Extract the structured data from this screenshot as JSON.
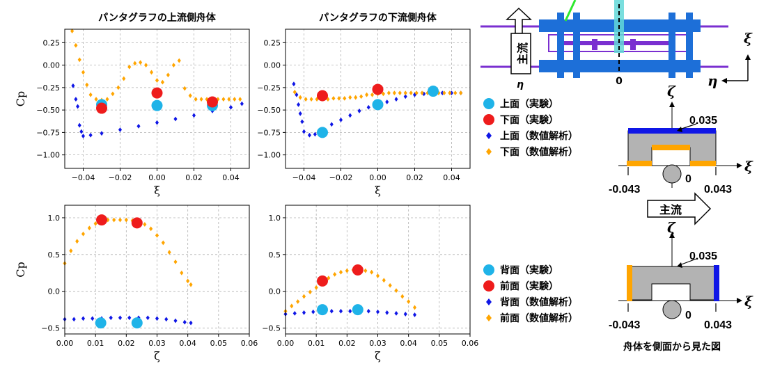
{
  "colors": {
    "upper_exp": "#1fb3e8",
    "lower_exp": "#ee1c1c",
    "upper_num": "#0f16e6",
    "lower_num": "#ffa500",
    "body_blue": "#1d6fd8",
    "rail_purple": "#7a2fd0",
    "body_gray": "#b3b3b3"
  },
  "legend_top": [
    {
      "label": "上面（実験）",
      "marker": "circle",
      "color_key": "upper_exp"
    },
    {
      "label": "下面（実験）",
      "marker": "circle",
      "color_key": "lower_exp"
    },
    {
      "label": "上面（数値解析）",
      "marker": "diamond",
      "color_key": "upper_num"
    },
    {
      "label": "下面（数値解析）",
      "marker": "diamond",
      "color_key": "lower_num"
    }
  ],
  "legend_bottom": [
    {
      "label": "背面（実験）",
      "marker": "circle",
      "color_key": "upper_exp"
    },
    {
      "label": "前面（実験）",
      "marker": "circle",
      "color_key": "lower_exp"
    },
    {
      "label": "背面（数値解析）",
      "marker": "diamond",
      "color_key": "upper_num"
    },
    {
      "label": "前面（数値解析）",
      "marker": "diamond",
      "color_key": "lower_num"
    }
  ],
  "diagram": {
    "flow_label": "主流",
    "xi_symbol": "ξ",
    "eta_symbol": "η",
    "zeta_symbol": "ζ",
    "zero_label": "0",
    "dim_top": "0.035",
    "dim_left": "-0.043",
    "dim_right": "0.043",
    "caption": "舟体を側面から見た図"
  },
  "chart_data": [
    {
      "type": "scatter",
      "title": "パンタグラフの上流側舟体",
      "xlabel": "ξ",
      "ylabel": "Cp",
      "xlim": [
        -0.05,
        0.05
      ],
      "ylim": [
        -1.15,
        0.4
      ],
      "xticks": [
        -0.04,
        -0.02,
        0.0,
        0.02,
        0.04
      ],
      "xtick_labels": [
        "−0.04",
        "−0.02",
        "0.00",
        "0.02",
        "0.04"
      ],
      "yticks": [
        0.25,
        0.0,
        -0.25,
        -0.5,
        -0.75,
        -1.0
      ],
      "ytick_labels": [
        "0.25",
        "0.00",
        "−0.25",
        "−0.50",
        "−0.75",
        "−1.00"
      ],
      "grid": true,
      "series": [
        {
          "name": "上面（数値解析）",
          "marker": "diamond",
          "color_key": "upper_num",
          "x": [
            -0.0455,
            -0.044,
            -0.043,
            -0.042,
            -0.041,
            -0.04,
            -0.036,
            -0.03,
            -0.02,
            -0.01,
            0.0,
            0.01,
            0.02,
            0.03,
            0.04,
            0.046
          ],
          "y": [
            -0.23,
            -0.38,
            -0.46,
            -0.67,
            -0.74,
            -0.79,
            -0.78,
            -0.76,
            -0.72,
            -0.68,
            -0.64,
            -0.6,
            -0.56,
            -0.51,
            -0.47,
            -0.43
          ]
        },
        {
          "name": "下面（数値解析）",
          "marker": "diamond",
          "color_key": "lower_num",
          "x": [
            -0.046,
            -0.044,
            -0.042,
            -0.04,
            -0.038,
            -0.036,
            -0.033,
            -0.03,
            -0.027,
            -0.024,
            -0.021,
            -0.018,
            -0.015,
            -0.012,
            -0.009,
            -0.006,
            -0.003,
            0.0,
            0.003,
            0.006,
            0.009,
            0.012,
            0.015,
            0.018,
            0.021,
            0.024,
            0.027,
            0.03,
            0.033,
            0.036,
            0.039,
            0.042,
            0.045
          ],
          "y": [
            0.38,
            0.22,
            0.06,
            -0.08,
            -0.22,
            -0.33,
            -0.38,
            -0.39,
            -0.38,
            -0.32,
            -0.25,
            -0.15,
            -0.02,
            0.02,
            0.03,
            0.0,
            -0.08,
            -0.17,
            -0.19,
            -0.11,
            0.0,
            0.05,
            -0.26,
            -0.34,
            -0.38,
            -0.38,
            -0.38,
            -0.38,
            -0.38,
            -0.38,
            -0.38,
            -0.38,
            -0.38
          ]
        },
        {
          "name": "上面（実験）",
          "marker": "circle",
          "color_key": "upper_exp",
          "x": [
            -0.03,
            0.0,
            0.03
          ],
          "y": [
            -0.44,
            -0.45,
            -0.45
          ]
        },
        {
          "name": "下面（実験）",
          "marker": "circle",
          "color_key": "lower_exp",
          "x": [
            -0.03,
            0.0,
            0.03
          ],
          "y": [
            -0.48,
            -0.31,
            -0.41
          ]
        }
      ]
    },
    {
      "type": "scatter",
      "title": "パンタグラフの下流側舟体",
      "xlabel": "ξ",
      "ylabel": "",
      "xlim": [
        -0.05,
        0.05
      ],
      "ylim": [
        -1.15,
        0.4
      ],
      "xticks": [
        -0.04,
        -0.02,
        0.0,
        0.02,
        0.04
      ],
      "xtick_labels": [
        "−0.04",
        "−0.02",
        "0.00",
        "0.02",
        "0.04"
      ],
      "yticks": [
        0.25,
        0.0,
        -0.25,
        -0.5,
        -0.75,
        -1.0
      ],
      "ytick_labels": [
        "0.25",
        "0.00",
        "−0.25",
        "−0.50",
        "−0.75",
        "−1.00"
      ],
      "grid": true,
      "series": [
        {
          "name": "上面（数値解析）",
          "marker": "diamond",
          "color_key": "upper_num",
          "x": [
            -0.0455,
            -0.044,
            -0.043,
            -0.042,
            -0.041,
            -0.04,
            -0.037,
            -0.034,
            -0.03,
            -0.025,
            -0.02,
            -0.015,
            -0.01,
            -0.005,
            0.0,
            0.005,
            0.01,
            0.015,
            0.02,
            0.025,
            0.03,
            0.035,
            0.04,
            0.045
          ],
          "y": [
            -0.21,
            -0.33,
            -0.44,
            -0.54,
            -0.63,
            -0.74,
            -0.78,
            -0.77,
            -0.72,
            -0.66,
            -0.61,
            -0.56,
            -0.51,
            -0.47,
            -0.44,
            -0.41,
            -0.38,
            -0.35,
            -0.33,
            -0.32,
            -0.31,
            -0.31,
            -0.31,
            -0.31
          ]
        },
        {
          "name": "下面（数値解析）",
          "marker": "diamond",
          "color_key": "lower_num",
          "x": [
            -0.045,
            -0.042,
            -0.039,
            -0.036,
            -0.033,
            -0.03,
            -0.027,
            -0.024,
            -0.021,
            -0.018,
            -0.015,
            -0.012,
            -0.009,
            -0.006,
            -0.003,
            0.0,
            0.003,
            0.006,
            0.009,
            0.012,
            0.015,
            0.018,
            0.021,
            0.024,
            0.027,
            0.03,
            0.033,
            0.036,
            0.039,
            0.042,
            0.045
          ],
          "y": [
            -0.3,
            -0.36,
            -0.38,
            -0.38,
            -0.38,
            -0.38,
            -0.38,
            -0.37,
            -0.37,
            -0.37,
            -0.36,
            -0.36,
            -0.35,
            -0.33,
            -0.33,
            -0.32,
            -0.32,
            -0.31,
            -0.31,
            -0.31,
            -0.31,
            -0.31,
            -0.31,
            -0.31,
            -0.31,
            -0.31,
            -0.31,
            -0.31,
            -0.31,
            -0.31,
            -0.31
          ]
        },
        {
          "name": "上面（実験）",
          "marker": "circle",
          "color_key": "upper_exp",
          "x": [
            -0.03,
            0.0,
            0.03
          ],
          "y": [
            -0.75,
            -0.44,
            -0.29
          ]
        },
        {
          "name": "下面（実験）",
          "marker": "circle",
          "color_key": "lower_exp",
          "x": [
            -0.03,
            0.0
          ],
          "y": [
            -0.34,
            -0.27
          ]
        }
      ]
    },
    {
      "type": "scatter",
      "title": "",
      "xlabel": "ζ",
      "ylabel": "Cp",
      "xlim": [
        0.0,
        0.06
      ],
      "ylim": [
        -0.58,
        1.17
      ],
      "xticks": [
        0.0,
        0.01,
        0.02,
        0.03,
        0.04,
        0.05,
        0.06
      ],
      "xtick_labels": [
        "0.00",
        "0.01",
        "0.02",
        "0.03",
        "0.04",
        "0.05",
        "0.06"
      ],
      "yticks": [
        1.0,
        0.5,
        0.0,
        -0.5
      ],
      "ytick_labels": [
        "1.0",
        "0.5",
        "0.0",
        "−0.5"
      ],
      "grid": true,
      "series": [
        {
          "name": "背面（数値解析）",
          "marker": "diamond",
          "color_key": "upper_num",
          "x": [
            0.0,
            0.003,
            0.006,
            0.009,
            0.012,
            0.015,
            0.018,
            0.021,
            0.024,
            0.027,
            0.03,
            0.033,
            0.036,
            0.039,
            0.041
          ],
          "y": [
            -0.38,
            -0.38,
            -0.37,
            -0.37,
            -0.37,
            -0.36,
            -0.36,
            -0.36,
            -0.36,
            -0.36,
            -0.37,
            -0.38,
            -0.4,
            -0.42,
            -0.43
          ]
        },
        {
          "name": "前面（数値解析）",
          "marker": "diamond",
          "color_key": "lower_num",
          "x": [
            0.0,
            0.002,
            0.004,
            0.006,
            0.008,
            0.01,
            0.012,
            0.014,
            0.016,
            0.018,
            0.02,
            0.022,
            0.024,
            0.026,
            0.028,
            0.03,
            0.032,
            0.034,
            0.036,
            0.038,
            0.04,
            0.041
          ],
          "y": [
            0.38,
            0.55,
            0.68,
            0.78,
            0.86,
            0.92,
            0.95,
            0.97,
            0.97,
            0.97,
            0.97,
            0.96,
            0.94,
            0.91,
            0.85,
            0.76,
            0.66,
            0.53,
            0.4,
            0.25,
            0.14,
            0.09
          ]
        },
        {
          "name": "背面（実験）",
          "marker": "circle",
          "color_key": "upper_exp",
          "x": [
            0.0117,
            0.0235
          ],
          "y": [
            -0.43,
            -0.43
          ]
        },
        {
          "name": "前面（実験）",
          "marker": "circle",
          "color_key": "lower_exp",
          "x": [
            0.012,
            0.0235
          ],
          "y": [
            0.97,
            0.93
          ]
        }
      ]
    },
    {
      "type": "scatter",
      "title": "",
      "xlabel": "ζ",
      "ylabel": "",
      "xlim": [
        0.0,
        0.06
      ],
      "ylim": [
        -0.58,
        1.17
      ],
      "xticks": [
        0.0,
        0.01,
        0.02,
        0.03,
        0.04,
        0.05,
        0.06
      ],
      "xtick_labels": [
        "0.00",
        "0.01",
        "0.02",
        "0.03",
        "0.04",
        "0.05",
        "0.06"
      ],
      "yticks": [
        1.0,
        0.5,
        0.0,
        -0.5
      ],
      "ytick_labels": [
        "1.0",
        "0.5",
        "0.0",
        "−0.5"
      ],
      "grid": true,
      "series": [
        {
          "name": "背面（数値解析）",
          "marker": "diamond",
          "color_key": "upper_num",
          "x": [
            0.0,
            0.003,
            0.006,
            0.009,
            0.012,
            0.015,
            0.018,
            0.021,
            0.024,
            0.027,
            0.03,
            0.033,
            0.036,
            0.039,
            0.042
          ],
          "y": [
            -0.31,
            -0.3,
            -0.29,
            -0.28,
            -0.28,
            -0.27,
            -0.27,
            -0.27,
            -0.27,
            -0.27,
            -0.28,
            -0.29,
            -0.3,
            -0.31,
            -0.32
          ]
        },
        {
          "name": "前面（数値解析）",
          "marker": "diamond",
          "color_key": "lower_num",
          "x": [
            0.0,
            0.002,
            0.004,
            0.006,
            0.008,
            0.01,
            0.012,
            0.014,
            0.016,
            0.018,
            0.02,
            0.022,
            0.024,
            0.026,
            0.028,
            0.03,
            0.032,
            0.034,
            0.036,
            0.038,
            0.04,
            0.042
          ],
          "y": [
            -0.27,
            -0.2,
            -0.14,
            -0.07,
            -0.01,
            0.05,
            0.12,
            0.18,
            0.23,
            0.26,
            0.28,
            0.29,
            0.29,
            0.28,
            0.26,
            0.21,
            0.15,
            0.08,
            0.01,
            -0.07,
            -0.14,
            -0.22
          ]
        },
        {
          "name": "背面（実験）",
          "marker": "circle",
          "color_key": "upper_exp",
          "x": [
            0.012,
            0.0235
          ],
          "y": [
            -0.25,
            -0.25
          ]
        },
        {
          "name": "前面（実験）",
          "marker": "circle",
          "color_key": "lower_exp",
          "x": [
            0.012,
            0.0235
          ],
          "y": [
            0.14,
            0.29
          ]
        }
      ]
    }
  ]
}
